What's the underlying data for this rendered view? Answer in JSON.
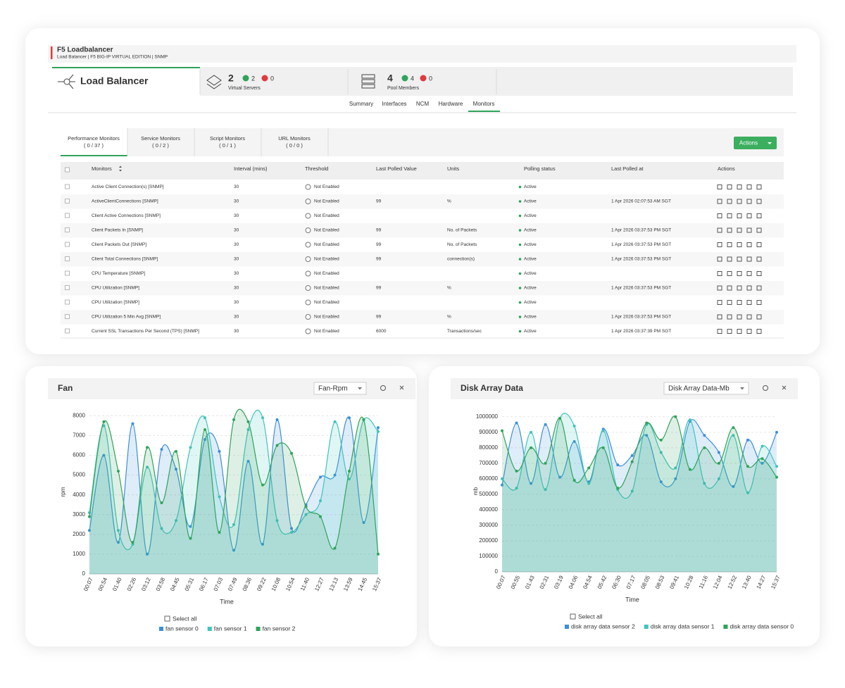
{
  "header": {
    "title": "F5 Loadbalancer",
    "subtitle": "Load Balancer | F5 BIG-IP VIRTUAL EDITION | SNMP"
  },
  "summary": {
    "device": "Load Balancer",
    "virtual_servers": {
      "count": "2",
      "up": "2",
      "down": "0",
      "label": "Virtual Servers"
    },
    "pool_members": {
      "count": "4",
      "up": "4",
      "down": "0",
      "label": "Pool Members"
    }
  },
  "nav": [
    "Summary",
    "Interfaces",
    "NCM",
    "Hardware",
    "Monitors"
  ],
  "monitor_tabs": [
    {
      "name": "Performance Monitors",
      "count": "( 0 / 37 )"
    },
    {
      "name": "Service Monitors",
      "count": "( 0 / 2 )"
    },
    {
      "name": "Script Monitors",
      "count": "( 0 / 1 )"
    },
    {
      "name": "URL Monitors",
      "count": "( 0 / 0 )"
    }
  ],
  "actions_button": "Actions",
  "table": {
    "headers": [
      "Monitors",
      "Interval (mins)",
      "Threshold",
      "Last Polled Value",
      "Units",
      "Polling status",
      "Last Polled at",
      "Actions"
    ],
    "rows": [
      [
        "Active Client Connection(s) [SNMP]",
        "30",
        "Not Enabled",
        null,
        null,
        "Active",
        null
      ],
      [
        "ActiveClientConnections [SNMP]",
        "30",
        "Not Enabled",
        "99",
        "%",
        "Active",
        "1 Apr 2026 02:07:53 AM SGT"
      ],
      [
        "Client Active Connections [SNMP]",
        "30",
        "Not Enabled",
        null,
        null,
        "Active",
        null
      ],
      [
        "Client Packets In [SNMP]",
        "30",
        "Not Enabled",
        "99",
        "No. of Packets",
        "Active",
        "1 Apr 2026 03:37:53 PM SGT"
      ],
      [
        "Client Packets Out [SNMP]",
        "30",
        "Not Enabled",
        "99",
        "No. of Packets",
        "Active",
        "1 Apr 2026 03:37:53 PM SGT"
      ],
      [
        "Client Total Connections [SNMP]",
        "30",
        "Not Enabled",
        "99",
        "connection(s)",
        "Active",
        "1 Apr 2026 03:37:53 PM SGT"
      ],
      [
        "CPU Temperature [SNMP]",
        "30",
        "Not Enabled",
        null,
        null,
        "Active",
        null
      ],
      [
        "CPU Utilization [SNMP]",
        "30",
        "Not Enabled",
        "99",
        "%",
        "Active",
        "1 Apr 2026 03:37:53 PM SGT"
      ],
      [
        "CPU Utilization [SNMP]",
        "30",
        "Not Enabled",
        null,
        null,
        "Active",
        null
      ],
      [
        "CPU Utilization 5 Min Avg [SNMP]",
        "30",
        "Not Enabled",
        "99",
        "%",
        "Active",
        "1 Apr 2026 03:37:53 PM SGT"
      ],
      [
        "Current SSL Transactions Per Second (TPS) [SNMP]",
        "30",
        "Not Enabled",
        "6000",
        "Transactions/sec",
        "Active",
        "1 Apr 2026 03:37:39 PM SGT"
      ]
    ]
  },
  "chart_data": [
    {
      "type": "line",
      "title": "Fan",
      "dropdown": "Fan-Rpm",
      "xlabel": "Time",
      "ylabel": "rpm",
      "select_all": "Select all",
      "categories": [
        "00:07",
        "00:54",
        "01:40",
        "02:26",
        "03:12",
        "03:58",
        "04:45",
        "05:31",
        "06:17",
        "07:03",
        "07:49",
        "08:36",
        "09:22",
        "10:08",
        "10:54",
        "11:40",
        "12:27",
        "13:13",
        "13:59",
        "14:45",
        "15:37"
      ],
      "series": [
        {
          "name": "fan sensor 0",
          "color": "#3b8fdb",
          "values": [
            2200,
            6000,
            1600,
            7600,
            1000,
            6300,
            5300,
            2400,
            6800,
            6200,
            1200,
            5700,
            1500,
            7800,
            2300,
            3500,
            4900,
            5000,
            7900,
            2600,
            7400
          ]
        },
        {
          "name": "fan sensor 1",
          "color": "#3fc4bd",
          "values": [
            3100,
            7500,
            2200,
            1500,
            5400,
            2300,
            2700,
            6400,
            7900,
            3900,
            2500,
            7300,
            7900,
            2700,
            2100,
            3000,
            3700,
            7700,
            4800,
            7800,
            7200
          ]
        },
        {
          "name": "fan sensor 2",
          "color": "#2fa35b",
          "values": [
            2900,
            7700,
            5200,
            1600,
            6400,
            3600,
            6200,
            1800,
            7300,
            2100,
            7800,
            7700,
            4500,
            6500,
            6100,
            3400,
            2900,
            1300,
            5200,
            7800,
            1000
          ]
        }
      ],
      "ylim": [
        0,
        8300
      ],
      "yticks": [
        0,
        1000,
        2000,
        3000,
        4000,
        5000,
        6000,
        7000,
        8000
      ],
      "grid": true
    },
    {
      "type": "line",
      "title": "Disk Array Data",
      "dropdown": "Disk Array Data-Mb",
      "xlabel": "Time",
      "ylabel": "mb",
      "select_all": "Select all",
      "categories": [
        "00:07",
        "00:55",
        "01:43",
        "02:31",
        "03:19",
        "04:06",
        "04:54",
        "05:42",
        "06:30",
        "07:17",
        "08:05",
        "08:53",
        "09:41",
        "10:28",
        "11:16",
        "12:04",
        "12:52",
        "13:40",
        "14:27",
        "15:37"
      ],
      "series": [
        {
          "name": "disk array data sensor 2",
          "color": "#3b8fdb",
          "values": [
            560000,
            960000,
            570000,
            950000,
            610000,
            840000,
            580000,
            920000,
            690000,
            750000,
            880000,
            580000,
            600000,
            970000,
            880000,
            770000,
            550000,
            850000,
            700000,
            900000
          ]
        },
        {
          "name": "disk array data sensor 1",
          "color": "#3fc4bd",
          "values": [
            600000,
            540000,
            900000,
            530000,
            990000,
            940000,
            570000,
            910000,
            530000,
            520000,
            950000,
            770000,
            670000,
            980000,
            570000,
            600000,
            880000,
            510000,
            810000,
            680000
          ]
        },
        {
          "name": "disk array data sensor 0",
          "color": "#2fa35b",
          "values": [
            910000,
            650000,
            800000,
            700000,
            990000,
            590000,
            670000,
            800000,
            540000,
            710000,
            960000,
            850000,
            1000000,
            660000,
            800000,
            700000,
            930000,
            680000,
            730000,
            610000
          ]
        }
      ],
      "ylim": [
        0,
        1040000
      ],
      "yticks": [
        0,
        100000,
        200000,
        300000,
        400000,
        500000,
        600000,
        700000,
        800000,
        900000,
        1000000
      ],
      "grid": true
    }
  ]
}
